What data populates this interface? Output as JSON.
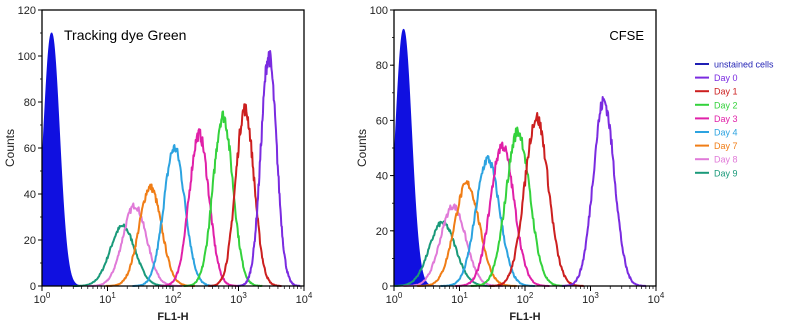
{
  "chart_data": [
    {
      "type": "line",
      "title": "Tracking dye Green",
      "xlabel": "FL1-H",
      "ylabel": "Counts",
      "x_scale": "log",
      "xlim": [
        1,
        10000
      ],
      "ylim": [
        0,
        120
      ],
      "x_ticks": [
        {
          "base": "10",
          "exp": "0"
        },
        {
          "base": "10",
          "exp": "1"
        },
        {
          "base": "10",
          "exp": "2"
        },
        {
          "base": "10",
          "exp": "3"
        },
        {
          "base": "10",
          "exp": "4"
        }
      ],
      "y_ticks": [
        "0",
        "20",
        "40",
        "60",
        "80",
        "100",
        "120"
      ],
      "unstained": {
        "peak_x": 1.4,
        "peak_y": 110,
        "width": 0.12
      },
      "series": [
        {
          "name": "Day 0",
          "color": "#7a2be0",
          "peak_x": 2900,
          "peak_y": 100,
          "width": 0.12
        },
        {
          "name": "Day 1",
          "color": "#cc1f1f",
          "peak_x": 1250,
          "peak_y": 77,
          "width": 0.14
        },
        {
          "name": "Day 2",
          "color": "#34d23c",
          "peak_x": 580,
          "peak_y": 74,
          "width": 0.15
        },
        {
          "name": "Day 3",
          "color": "#e020a8",
          "peak_x": 250,
          "peak_y": 66,
          "width": 0.15
        },
        {
          "name": "Day 4",
          "color": "#2ca3e0",
          "peak_x": 105,
          "peak_y": 60,
          "width": 0.16
        },
        {
          "name": "Day 7",
          "color": "#f07d16",
          "peak_x": 45,
          "peak_y": 43,
          "width": 0.17
        },
        {
          "name": "Day 8",
          "color": "#e07ad8",
          "peak_x": 26,
          "peak_y": 35,
          "width": 0.18
        },
        {
          "name": "Day 9",
          "color": "#1a9a7a",
          "peak_x": 17,
          "peak_y": 26,
          "width": 0.19
        }
      ]
    },
    {
      "type": "line",
      "title": "CFSE",
      "xlabel": "FL1-H",
      "ylabel": "Counts",
      "x_scale": "log",
      "xlim": [
        1,
        10000
      ],
      "ylim": [
        0,
        100
      ],
      "x_ticks": [
        {
          "base": "10",
          "exp": "0"
        },
        {
          "base": "10",
          "exp": "1"
        },
        {
          "base": "10",
          "exp": "2"
        },
        {
          "base": "10",
          "exp": "3"
        },
        {
          "base": "10",
          "exp": "4"
        }
      ],
      "y_ticks": [
        "0",
        "20",
        "40",
        "60",
        "80",
        "100"
      ],
      "unstained": {
        "peak_x": 1.4,
        "peak_y": 93,
        "width": 0.12
      },
      "series": [
        {
          "name": "Day 0",
          "color": "#7a2be0",
          "peak_x": 1600,
          "peak_y": 67,
          "width": 0.16
        },
        {
          "name": "Day 1",
          "color": "#cc1f1f",
          "peak_x": 150,
          "peak_y": 61,
          "width": 0.18
        },
        {
          "name": "Day 2",
          "color": "#34d23c",
          "peak_x": 78,
          "peak_y": 56,
          "width": 0.18
        },
        {
          "name": "Day 3",
          "color": "#e020a8",
          "peak_x": 45,
          "peak_y": 51,
          "width": 0.18
        },
        {
          "name": "Day 4",
          "color": "#2ca3e0",
          "peak_x": 27,
          "peak_y": 46,
          "width": 0.18
        },
        {
          "name": "Day 7",
          "color": "#f07d16",
          "peak_x": 13,
          "peak_y": 37,
          "width": 0.19
        },
        {
          "name": "Day 8",
          "color": "#e07ad8",
          "peak_x": 8,
          "peak_y": 29,
          "width": 0.19
        },
        {
          "name": "Day 9",
          "color": "#1a9a7a",
          "peak_x": 5.5,
          "peak_y": 23,
          "width": 0.2
        }
      ]
    }
  ],
  "legend": {
    "placement": "right",
    "entries": [
      {
        "label": "unstained cells",
        "color": "#1f1fb4"
      },
      {
        "label": "Day 0",
        "color": "#7a2be0"
      },
      {
        "label": "Day 1",
        "color": "#cc1f1f"
      },
      {
        "label": "Day 2",
        "color": "#34d23c"
      },
      {
        "label": "Day 3",
        "color": "#e020a8"
      },
      {
        "label": "Day 4",
        "color": "#2ca3e0"
      },
      {
        "label": "Day 7",
        "color": "#f07d16"
      },
      {
        "label": "Day 8",
        "color": "#e07ad8"
      },
      {
        "label": "Day 9",
        "color": "#1a9a7a"
      }
    ]
  },
  "colors": {
    "unstained_fill": "#1010e0",
    "axis": "#000000"
  }
}
